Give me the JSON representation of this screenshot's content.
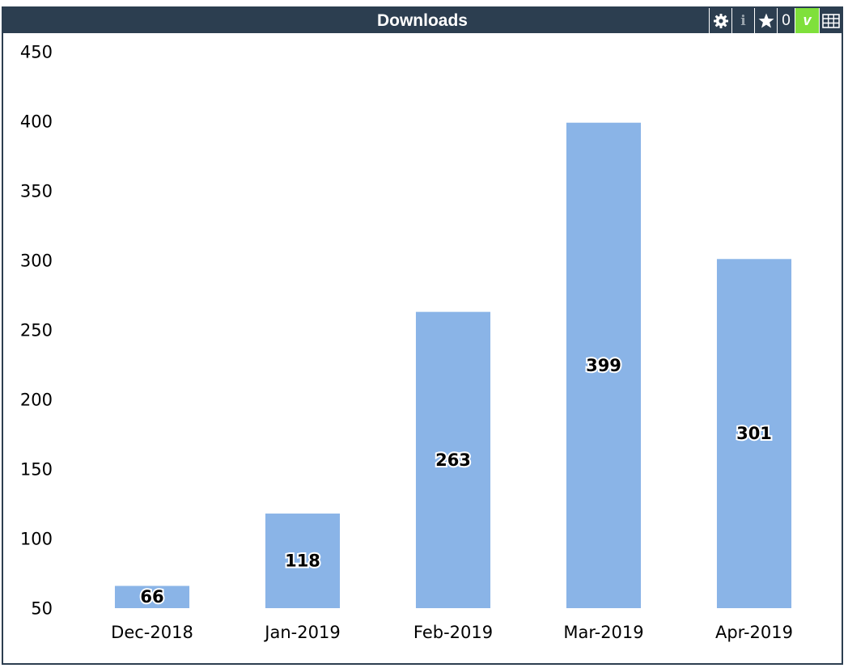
{
  "panel": {
    "title": "Downloads",
    "toolbar": {
      "settings_icon": "gear-icon",
      "info_icon": "info-icon",
      "info_label": "i",
      "star_icon": "star-icon",
      "star_count": "0",
      "v_label": "v",
      "table_icon": "table-icon"
    }
  },
  "colors": {
    "bar": "#8ab4e7",
    "header": "#2c3e50",
    "v_button": "#7fe03b"
  },
  "chart_data": {
    "type": "bar",
    "categories": [
      "Dec-2018",
      "Jan-2019",
      "Feb-2019",
      "Mar-2019",
      "Apr-2019"
    ],
    "values": [
      66,
      118,
      263,
      399,
      301
    ],
    "value_labels": [
      "66",
      "118",
      "263",
      "399",
      "301"
    ],
    "ylim": [
      50,
      450
    ],
    "yticks": [
      50,
      100,
      150,
      200,
      250,
      300,
      350,
      400,
      450
    ],
    "ytick_labels": [
      "50",
      "100",
      "150",
      "200",
      "250",
      "300",
      "350",
      "400",
      "450"
    ],
    "grid": false,
    "legend": "none"
  }
}
